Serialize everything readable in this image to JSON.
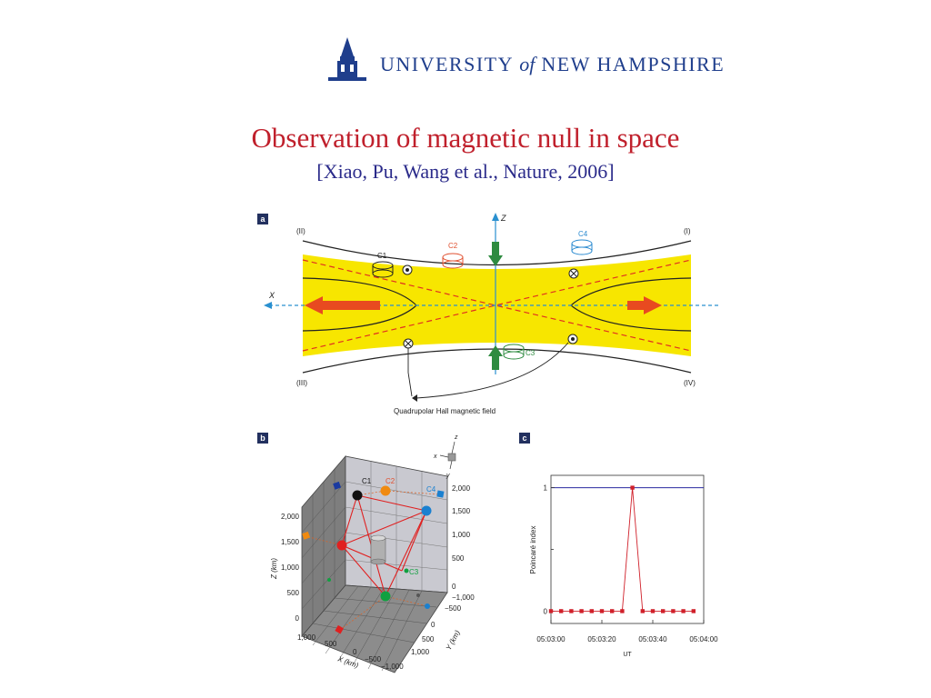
{
  "header": {
    "logo_text_1": "UNIVERSITY",
    "logo_text_of": "of",
    "logo_text_2": "NEW HAMPSHIRE",
    "brand_color": "#1f3e8c"
  },
  "slide": {
    "title": "Observation of magnetic null in space",
    "subtitle": "[Xiao, Pu, Wang et al., Nature, 2006]",
    "title_color": "#c0202c",
    "subtitle_color": "#2a2a8a"
  },
  "panel_a": {
    "tag": "a",
    "quadrants": [
      "(II)",
      "(I)",
      "(III)",
      "(IV)"
    ],
    "axis_x": "X",
    "axis_z": "Z",
    "spacecraft": [
      "C1",
      "C2",
      "C4",
      "C3"
    ],
    "caption": "Quadrupolar Hall magnetic field",
    "sheet_color": "#f7e600"
  },
  "panel_b": {
    "tag": "b",
    "z_axis_label": "Z (km)",
    "z_ticks": [
      "2,000",
      "1,500",
      "1,000",
      "500",
      "0"
    ],
    "x_axis_label": "X (km)",
    "x_ticks": [
      "1,000",
      "500",
      "0",
      "−500",
      "−1,000"
    ],
    "y_axis_label": "Y (km)",
    "y_ticks": [
      "−1,000",
      "−500",
      "0",
      "500",
      "1,000"
    ],
    "right_ticks": [
      "2,000",
      "1,500",
      "1,000",
      "500",
      "0"
    ],
    "orient": [
      "z",
      "x",
      "y"
    ],
    "spacecraft": [
      "C1",
      "C2",
      "C4",
      "C3"
    ]
  },
  "panel_c": {
    "tag": "c"
  },
  "chart_data": {
    "type": "line",
    "xlabel": "UT",
    "ylabel": "Poincaré index",
    "x_ticks": [
      "05:03:00",
      "05:03:20",
      "05:03:40",
      "05:04:00"
    ],
    "y_ticks": [
      "0",
      "1"
    ],
    "xlim": [
      "05:03:00",
      "05:04:00"
    ],
    "ylim": [
      -0.1,
      1.1
    ],
    "reference_line": 1,
    "series": [
      {
        "x": [
          "05:03:00",
          "05:03:04",
          "05:03:08",
          "05:03:12",
          "05:03:16",
          "05:03:20",
          "05:03:24",
          "05:03:28",
          "05:03:32",
          "05:03:36",
          "05:03:40",
          "05:03:44",
          "05:03:48",
          "05:03:52",
          "05:03:56"
        ],
        "values": [
          0,
          0,
          0,
          0,
          0,
          0,
          0,
          0,
          1,
          0,
          0,
          0,
          0,
          0,
          0
        ],
        "color": "#d0202a"
      }
    ]
  }
}
